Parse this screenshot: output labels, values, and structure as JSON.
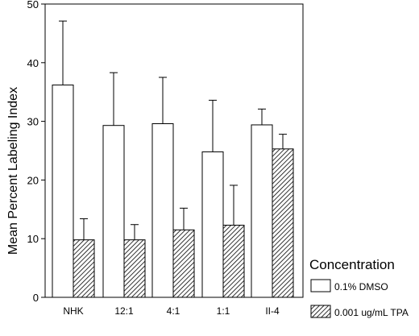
{
  "chart_data": {
    "type": "bar",
    "categories": [
      "NHK",
      "12:1",
      "4:1",
      "1:1",
      "II-4"
    ],
    "series": [
      {
        "name": "0.1% DMSO",
        "values": [
          36.2,
          29.3,
          29.6,
          24.8,
          29.4
        ],
        "errors": [
          10.9,
          9.0,
          7.9,
          8.8,
          2.7
        ],
        "fill": "plain"
      },
      {
        "name": "0.001 ug/mL TPA",
        "values": [
          9.8,
          9.8,
          11.5,
          12.3,
          25.3
        ],
        "errors": [
          3.6,
          2.6,
          3.7,
          6.8,
          2.5
        ],
        "fill": "hatched"
      }
    ],
    "ylabel": "Mean Percent Labeling Index",
    "xlabel": "",
    "ylim": [
      0,
      50
    ],
    "yticks": [
      0,
      10,
      20,
      30,
      40,
      50
    ],
    "legend": {
      "title": "Concentration",
      "placement": "bottom-right outside"
    },
    "grid": false
  }
}
